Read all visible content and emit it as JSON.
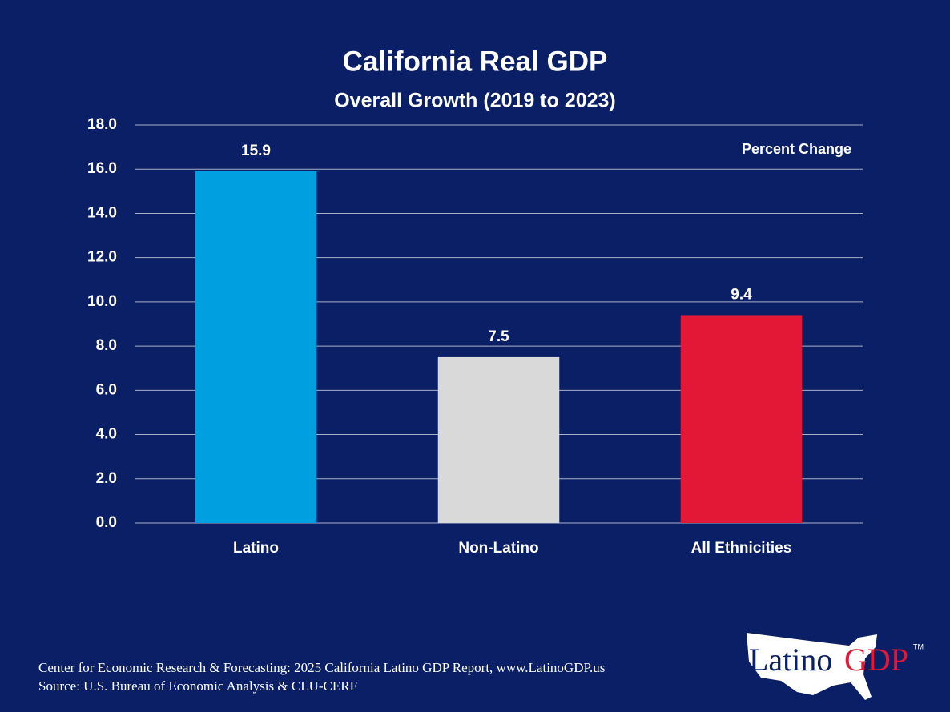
{
  "chart_data": {
    "type": "bar",
    "title": "California Real GDP",
    "subtitle": "Overall Growth (2019 to 2023)",
    "annotation": "Percent Change",
    "categories": [
      "Latino",
      "Non-Latino",
      "All Ethnicities"
    ],
    "values": [
      15.9,
      7.5,
      9.4
    ],
    "colors": [
      "#009fdf",
      "#d9d9d9",
      "#e31837"
    ],
    "ylim": [
      0,
      18
    ],
    "yticks": [
      {
        "value": 0,
        "label": "0.0"
      },
      {
        "value": 2,
        "label": "2.0"
      },
      {
        "value": 4,
        "label": "4.0"
      },
      {
        "value": 6,
        "label": "6.0"
      },
      {
        "value": 8,
        "label": "8.0"
      },
      {
        "value": 10,
        "label": "10.0"
      },
      {
        "value": 12,
        "label": "12.0"
      },
      {
        "value": 14,
        "label": "14.0"
      },
      {
        "value": 16,
        "label": "16.0"
      },
      {
        "value": 18,
        "label": "18.0"
      }
    ],
    "grid": true
  },
  "footer": {
    "lines": [
      "Center for Economic Research & Forecasting: 2025 California Latino GDP Report, www.LatinoGDP.us",
      "Source: U.S. Bureau of Economic Analysis & CLU-CERF"
    ]
  },
  "logo": {
    "word1": "Latino",
    "word2": "GDP",
    "mark": "TM"
  }
}
